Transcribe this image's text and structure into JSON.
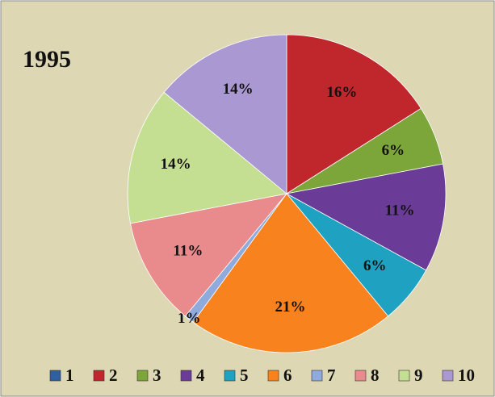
{
  "chart_data": {
    "type": "pie",
    "title": "1995",
    "categories": [
      "1",
      "2",
      "3",
      "4",
      "5",
      "6",
      "7",
      "8",
      "9",
      "10"
    ],
    "values": [
      0,
      16,
      6,
      11,
      6,
      21,
      1,
      11,
      14,
      14
    ],
    "value_labels": [
      "0%",
      "16%",
      "6%",
      "11%",
      "6%",
      "21%",
      "1%",
      "11%",
      "14%",
      "14%"
    ],
    "colors": [
      "#2f5f9e",
      "#c0272d",
      "#7ca53a",
      "#6a3c98",
      "#1fa2c2",
      "#f7821e",
      "#8faadc",
      "#e98a8c",
      "#c5df92",
      "#aa98d2"
    ],
    "legend": "bottom"
  }
}
